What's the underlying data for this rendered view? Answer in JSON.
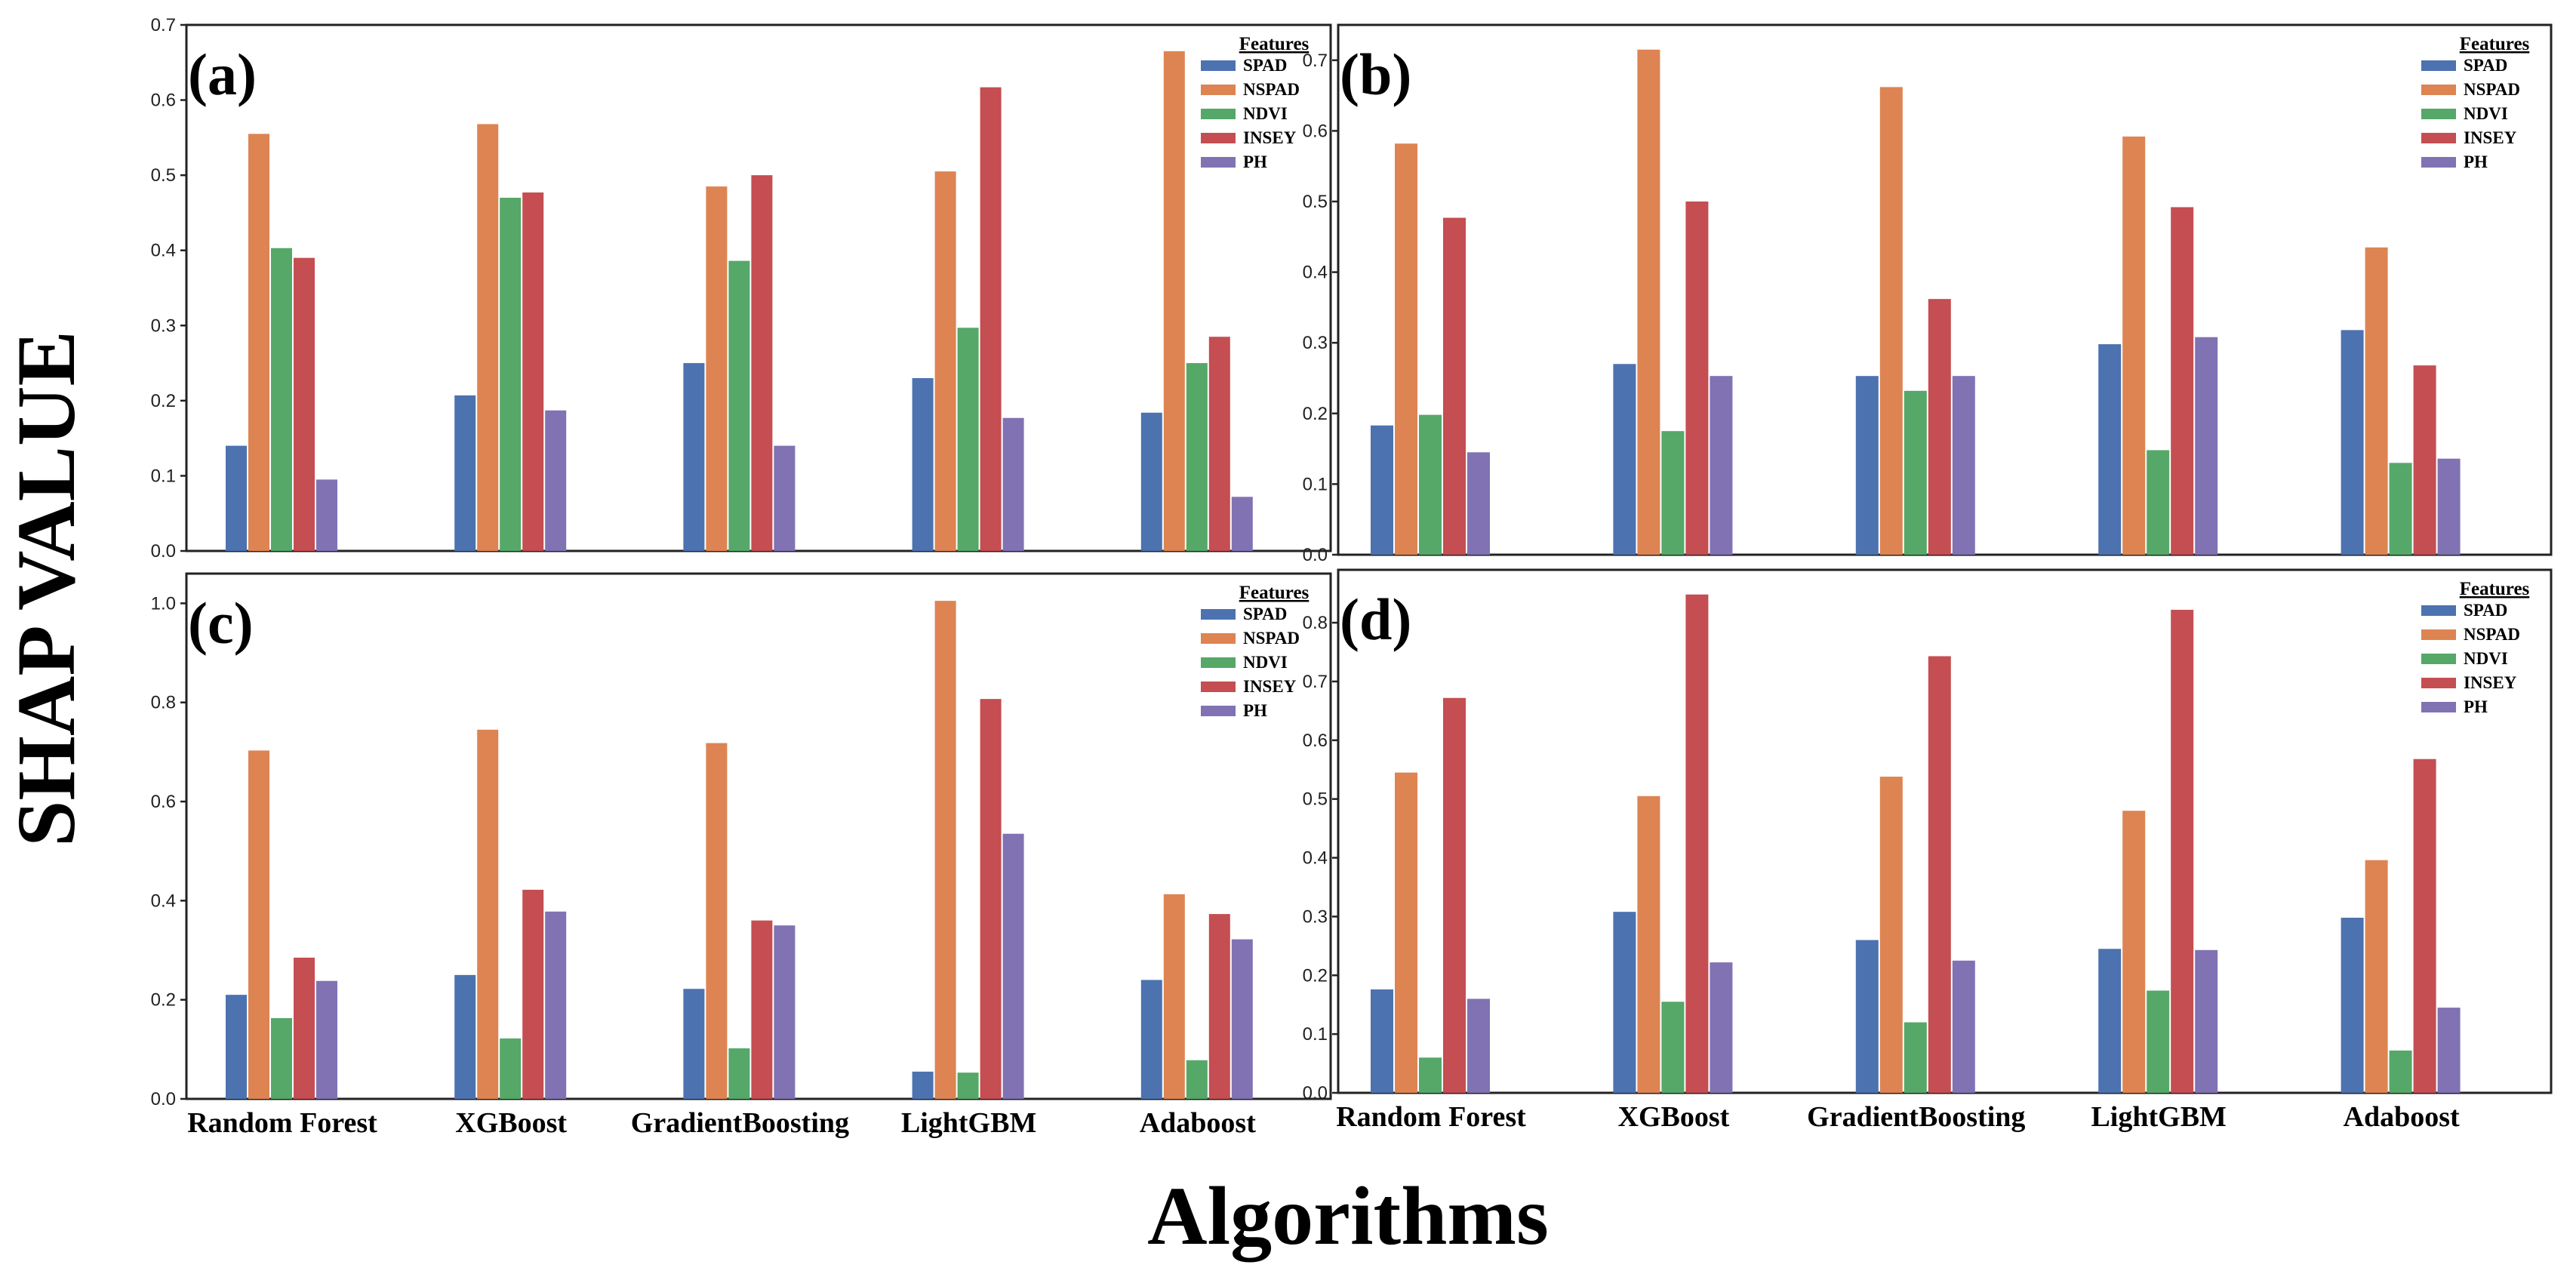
{
  "figure": {
    "ylabel": "SHAP VALUE",
    "xlabel": "Algorithms"
  },
  "chart_data": [
    {
      "type": "bar",
      "panel_label": "(a)",
      "legend_title": "Features",
      "legend_position": "top-right",
      "categories": [
        "Random Forest",
        "XGBoost",
        "GradientBoosting",
        "LightGBM",
        "Adaboost"
      ],
      "show_category_labels": false,
      "ylim": [
        0,
        0.7
      ],
      "yticks": [
        0.0,
        0.1,
        0.2,
        0.3,
        0.4,
        0.5,
        0.6,
        0.7
      ],
      "ytick_labels": [
        "0.0",
        "0.1",
        "0.2",
        "0.3",
        "0.4",
        "0.5",
        "0.6",
        "0.7"
      ],
      "series": [
        {
          "name": "SPAD",
          "color": "#4c72b0",
          "values": [
            0.14,
            0.207,
            0.25,
            0.23,
            0.184
          ]
        },
        {
          "name": "NSPAD",
          "color": "#dd8452",
          "values": [
            0.555,
            0.568,
            0.485,
            0.505,
            0.665
          ]
        },
        {
          "name": "NDVI",
          "color": "#55a868",
          "values": [
            0.403,
            0.47,
            0.386,
            0.297,
            0.25
          ]
        },
        {
          "name": "INSEY",
          "color": "#c44e52",
          "values": [
            0.39,
            0.477,
            0.5,
            0.617,
            0.285
          ]
        },
        {
          "name": "PH",
          "color": "#8172b3",
          "values": [
            0.095,
            0.187,
            0.14,
            0.177,
            0.072
          ]
        }
      ]
    },
    {
      "type": "bar",
      "panel_label": "(b)",
      "legend_title": "Features",
      "legend_position": "top-right",
      "categories": [
        "Random Forest",
        "XGBoost",
        "GradientBoosting",
        "LightGBM",
        "Adaboost"
      ],
      "show_category_labels": false,
      "ylim": [
        0,
        0.75
      ],
      "yticks": [
        0.0,
        0.1,
        0.2,
        0.3,
        0.4,
        0.5,
        0.6,
        0.7
      ],
      "ytick_labels": [
        "0.0",
        "0.1",
        "0.2",
        "0.3",
        "0.4",
        "0.5",
        "0.6",
        "0.7"
      ],
      "series": [
        {
          "name": "SPAD",
          "color": "#4c72b0",
          "values": [
            0.183,
            0.27,
            0.253,
            0.298,
            0.318
          ]
        },
        {
          "name": "NSPAD",
          "color": "#dd8452",
          "values": [
            0.582,
            0.715,
            0.662,
            0.592,
            0.435
          ]
        },
        {
          "name": "NDVI",
          "color": "#55a868",
          "values": [
            0.198,
            0.175,
            0.232,
            0.148,
            0.13
          ]
        },
        {
          "name": "INSEY",
          "color": "#c44e52",
          "values": [
            0.477,
            0.5,
            0.362,
            0.492,
            0.268
          ]
        },
        {
          "name": "PH",
          "color": "#8172b3",
          "values": [
            0.145,
            0.253,
            0.253,
            0.308,
            0.136
          ]
        }
      ]
    },
    {
      "type": "bar",
      "panel_label": "(c)",
      "legend_title": "Features",
      "legend_position": "top-right",
      "categories": [
        "Random Forest",
        "XGBoost",
        "GradientBoosting",
        "LightGBM",
        "Adaboost"
      ],
      "show_category_labels": true,
      "ylim": [
        0,
        1.06
      ],
      "yticks": [
        0.0,
        0.2,
        0.4,
        0.6,
        0.8,
        1.0
      ],
      "ytick_labels": [
        "0.0",
        "0.2",
        "0.4",
        "0.6",
        "0.8",
        "1.0"
      ],
      "series": [
        {
          "name": "SPAD",
          "color": "#4c72b0",
          "values": [
            0.21,
            0.25,
            0.222,
            0.055,
            0.24
          ]
        },
        {
          "name": "NSPAD",
          "color": "#dd8452",
          "values": [
            0.703,
            0.745,
            0.718,
            1.005,
            0.413
          ]
        },
        {
          "name": "NDVI",
          "color": "#55a868",
          "values": [
            0.163,
            0.122,
            0.102,
            0.053,
            0.078
          ]
        },
        {
          "name": "INSEY",
          "color": "#c44e52",
          "values": [
            0.285,
            0.422,
            0.36,
            0.807,
            0.373
          ]
        },
        {
          "name": "PH",
          "color": "#8172b3",
          "values": [
            0.238,
            0.378,
            0.35,
            0.535,
            0.322
          ]
        }
      ]
    },
    {
      "type": "bar",
      "panel_label": "(d)",
      "legend_title": "Features",
      "legend_position": "top-right",
      "categories": [
        "Random Forest",
        "XGBoost",
        "GradientBoosting",
        "LightGBM",
        "Adaboost"
      ],
      "show_category_labels": true,
      "ylim": [
        0,
        0.89
      ],
      "yticks": [
        0.0,
        0.1,
        0.2,
        0.3,
        0.4,
        0.5,
        0.6,
        0.7,
        0.8
      ],
      "ytick_labels": [
        "0.0",
        "0.1",
        "0.2",
        "0.3",
        "0.4",
        "0.5",
        "0.6",
        "0.7",
        "0.8"
      ],
      "series": [
        {
          "name": "SPAD",
          "color": "#4c72b0",
          "values": [
            0.176,
            0.308,
            0.26,
            0.245,
            0.298
          ]
        },
        {
          "name": "NSPAD",
          "color": "#dd8452",
          "values": [
            0.545,
            0.505,
            0.538,
            0.48,
            0.396
          ]
        },
        {
          "name": "NDVI",
          "color": "#55a868",
          "values": [
            0.06,
            0.155,
            0.12,
            0.174,
            0.072
          ]
        },
        {
          "name": "INSEY",
          "color": "#c44e52",
          "values": [
            0.672,
            0.848,
            0.743,
            0.822,
            0.568
          ]
        },
        {
          "name": "PH",
          "color": "#8172b3",
          "values": [
            0.16,
            0.222,
            0.225,
            0.243,
            0.145
          ]
        }
      ]
    }
  ]
}
